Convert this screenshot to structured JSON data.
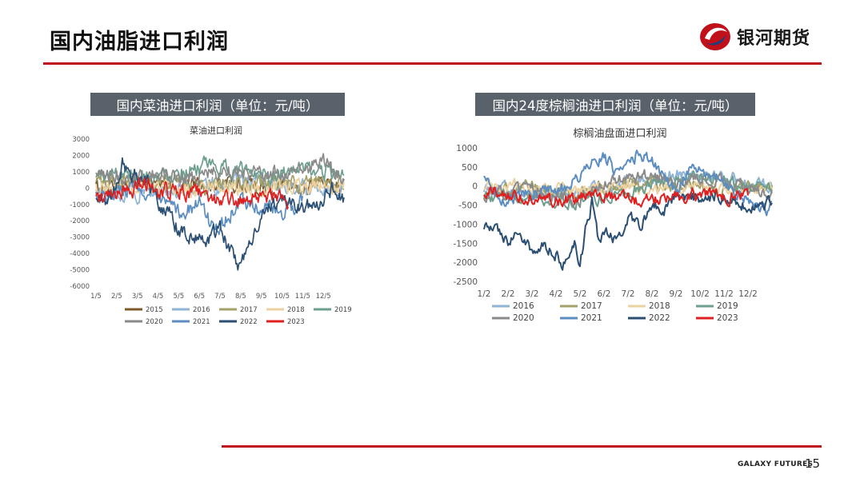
{
  "page": {
    "title": "国内油脂进口利润",
    "logo_text": "银河期货",
    "footer_brand": "GALAXY FUTURES",
    "page_number": "15",
    "accent_color": "#c0111b",
    "label_bar_color": "#59616b"
  },
  "chart_data": [
    {
      "type": "line",
      "label_bar": "国内菜油进口利润（单位：元/吨）",
      "title": "菜油进口利润",
      "x_tick_labels": [
        "1/5",
        "2/5",
        "3/5",
        "4/5",
        "5/5",
        "6/5",
        "7/5",
        "8/5",
        "9/5",
        "10/5",
        "11/5",
        "12/5"
      ],
      "x_range": [
        0,
        12
      ],
      "y_ticks": [
        3000,
        2000,
        1000,
        0,
        -1000,
        -2000,
        -3000,
        -4000,
        -5000,
        -6000
      ],
      "ylim": [
        -6000,
        3000
      ],
      "grid": false,
      "legend_position": "bottom",
      "series": [
        {
          "name": "2015",
          "color": "#7d5a2a",
          "anchors": [
            [
              0,
              150
            ],
            [
              1.5,
              300
            ],
            [
              3,
              200
            ],
            [
              5,
              250
            ],
            [
              7,
              150
            ],
            [
              9,
              100
            ],
            [
              11,
              150
            ],
            [
              12,
              100
            ]
          ]
        },
        {
          "name": "2016",
          "color": "#8fb4d6",
          "anchors": [
            [
              0,
              -200
            ],
            [
              2,
              -300
            ],
            [
              4,
              -100
            ],
            [
              6,
              200
            ],
            [
              8,
              300
            ],
            [
              10,
              0
            ],
            [
              12,
              200
            ]
          ]
        },
        {
          "name": "2017",
          "color": "#a3a06a",
          "anchors": [
            [
              0,
              300
            ],
            [
              2,
              400
            ],
            [
              4,
              200
            ],
            [
              6,
              100
            ],
            [
              8,
              300
            ],
            [
              10,
              200
            ],
            [
              12,
              300
            ]
          ]
        },
        {
          "name": "2018",
          "color": "#ecd2a0",
          "anchors": [
            [
              0,
              100
            ],
            [
              2,
              0
            ],
            [
              4,
              -100
            ],
            [
              6,
              200
            ],
            [
              8,
              50
            ],
            [
              10,
              100
            ],
            [
              12,
              0
            ]
          ]
        },
        {
          "name": "2019",
          "color": "#6e9f8e",
          "anchors": [
            [
              0,
              800
            ],
            [
              1.5,
              1000
            ],
            [
              3,
              700
            ],
            [
              4,
              1100
            ],
            [
              5,
              1300
            ],
            [
              6,
              1200
            ],
            [
              7,
              1100
            ],
            [
              8,
              1000
            ],
            [
              9,
              900
            ],
            [
              10,
              1100
            ],
            [
              11,
              1000
            ],
            [
              11.8,
              900
            ],
            [
              12,
              500
            ]
          ]
        },
        {
          "name": "2020",
          "color": "#8a8a8a",
          "anchors": [
            [
              0,
              500
            ],
            [
              1,
              700
            ],
            [
              2,
              800
            ],
            [
              3,
              900
            ],
            [
              4,
              600
            ],
            [
              5,
              800
            ],
            [
              6,
              1000
            ],
            [
              7,
              1200
            ],
            [
              8,
              1000
            ],
            [
              9,
              800
            ],
            [
              10,
              1100
            ],
            [
              11,
              1700
            ],
            [
              11.5,
              1000
            ],
            [
              12,
              600
            ]
          ]
        },
        {
          "name": "2021",
          "color": "#5b8dc0",
          "anchors": [
            [
              0,
              -400
            ],
            [
              1,
              -200
            ],
            [
              2,
              200
            ],
            [
              3,
              -800
            ],
            [
              4,
              -1500
            ],
            [
              5,
              -1000
            ],
            [
              5.5,
              -2000
            ],
            [
              6,
              -2500
            ],
            [
              6.5,
              -1500
            ],
            [
              7,
              -1000
            ],
            [
              8,
              -1200
            ],
            [
              9,
              -1500
            ],
            [
              10,
              -800
            ]
          ]
        },
        {
          "name": "2022",
          "color": "#2a4f73",
          "anchors": [
            [
              0,
              -800
            ],
            [
              0.8,
              -500
            ],
            [
              1,
              300
            ],
            [
              1.3,
              1600
            ],
            [
              1.6,
              1000
            ],
            [
              2,
              800
            ],
            [
              2.5,
              500
            ],
            [
              3,
              -800
            ],
            [
              3.5,
              -1500
            ],
            [
              4,
              -2500
            ],
            [
              4.5,
              -2800
            ],
            [
              5,
              -3200
            ],
            [
              5.5,
              -3000
            ],
            [
              6,
              -2500
            ],
            [
              6.5,
              -3800
            ],
            [
              6.9,
              -4800
            ],
            [
              7.1,
              -4300
            ],
            [
              7.5,
              -3500
            ],
            [
              7.9,
              -2200
            ],
            [
              8.2,
              -1000
            ],
            [
              8.5,
              -1200
            ],
            [
              9,
              -900
            ],
            [
              9.5,
              -1000
            ],
            [
              10,
              -1200
            ],
            [
              10.5,
              -800
            ],
            [
              11,
              -600
            ],
            [
              11.5,
              0
            ],
            [
              12,
              -700
            ]
          ]
        },
        {
          "name": "2023",
          "color": "#e02020",
          "anchors": [
            [
              0,
              -700
            ],
            [
              1,
              -500
            ],
            [
              2,
              0
            ],
            [
              2.5,
              200
            ],
            [
              3,
              -300
            ],
            [
              4,
              -100
            ],
            [
              5,
              -400
            ],
            [
              6,
              -700
            ],
            [
              6.5,
              -800
            ],
            [
              7,
              -700
            ],
            [
              8,
              -600
            ],
            [
              9,
              -700
            ],
            [
              9.3,
              -1200
            ]
          ]
        }
      ]
    },
    {
      "type": "line",
      "label_bar": "国内24度棕榈油进口利润（单位：元/吨）",
      "title": "棕榈油盘面进口利润",
      "x_tick_labels": [
        "1/2",
        "2/2",
        "3/2",
        "4/2",
        "5/2",
        "6/2",
        "7/2",
        "8/2",
        "9/2",
        "10/2",
        "11/2",
        "12/2"
      ],
      "x_range": [
        0,
        12
      ],
      "y_ticks": [
        1000,
        500,
        0,
        -500,
        -1000,
        -1500,
        -2000,
        -2500
      ],
      "ylim": [
        -2500,
        1000
      ],
      "grid": false,
      "legend_position": "bottom",
      "series": [
        {
          "name": "2016",
          "color": "#8fb4d6",
          "anchors": [
            [
              0,
              0
            ],
            [
              1.5,
              -100
            ],
            [
              3,
              -200
            ],
            [
              4.5,
              -100
            ],
            [
              6,
              100
            ],
            [
              7.5,
              300
            ],
            [
              9,
              400
            ],
            [
              10.5,
              200
            ],
            [
              11.5,
              0
            ],
            [
              12,
              100
            ]
          ]
        },
        {
          "name": "2017",
          "color": "#a3a06a",
          "anchors": [
            [
              0,
              -100
            ],
            [
              2,
              0
            ],
            [
              4,
              -200
            ],
            [
              6,
              100
            ],
            [
              8,
              50
            ],
            [
              10,
              -100
            ],
            [
              12,
              0
            ]
          ]
        },
        {
          "name": "2018",
          "color": "#ecd2a0",
          "anchors": [
            [
              0,
              50
            ],
            [
              2,
              -50
            ],
            [
              4,
              -100
            ],
            [
              6,
              0
            ],
            [
              8,
              -50
            ],
            [
              10,
              -100
            ],
            [
              12,
              -50
            ]
          ]
        },
        {
          "name": "2019",
          "color": "#6e9f8e",
          "anchors": [
            [
              0,
              -200
            ],
            [
              2,
              -300
            ],
            [
              4,
              -400
            ],
            [
              6,
              -100
            ],
            [
              8,
              200
            ],
            [
              9,
              300
            ],
            [
              10,
              200
            ],
            [
              11,
              0
            ],
            [
              12,
              -100
            ]
          ]
        },
        {
          "name": "2020",
          "color": "#8a8a8a",
          "anchors": [
            [
              0,
              -200
            ],
            [
              2,
              -100
            ],
            [
              4,
              -300
            ],
            [
              5,
              100
            ],
            [
              6,
              200
            ],
            [
              7,
              300
            ],
            [
              8,
              100
            ],
            [
              9,
              200
            ],
            [
              10,
              100
            ],
            [
              11,
              0
            ],
            [
              12,
              -200
            ]
          ]
        },
        {
          "name": "2021",
          "color": "#5b8dc0",
          "anchors": [
            [
              0,
              400
            ],
            [
              0.3,
              -200
            ],
            [
              1,
              -300
            ],
            [
              2,
              -200
            ],
            [
              3,
              -100
            ],
            [
              4,
              200
            ],
            [
              4.5,
              600
            ],
            [
              5,
              800
            ],
            [
              5.5,
              400
            ],
            [
              6,
              700
            ],
            [
              6.5,
              900
            ],
            [
              7,
              700
            ],
            [
              7.5,
              300
            ],
            [
              8,
              -100
            ],
            [
              8.5,
              400
            ],
            [
              9,
              500
            ],
            [
              9.5,
              300
            ],
            [
              10,
              100
            ],
            [
              10.5,
              -200
            ],
            [
              11,
              -400
            ],
            [
              11.5,
              -700
            ],
            [
              12,
              -500
            ]
          ]
        },
        {
          "name": "2022",
          "color": "#2a4f73",
          "anchors": [
            [
              0,
              -1000
            ],
            [
              0.5,
              -1200
            ],
            [
              1,
              -1400
            ],
            [
              1.5,
              -1200
            ],
            [
              2,
              -1700
            ],
            [
              2.5,
              -1500
            ],
            [
              3,
              -1800
            ],
            [
              3.5,
              -2100
            ],
            [
              3.8,
              -1500
            ],
            [
              4,
              -2200
            ],
            [
              4.2,
              -1200
            ],
            [
              4.5,
              -400
            ],
            [
              4.8,
              -1600
            ],
            [
              5,
              -1200
            ],
            [
              5.5,
              -1400
            ],
            [
              6,
              -800
            ],
            [
              6.5,
              -1100
            ],
            [
              7,
              -400
            ],
            [
              7.5,
              -600
            ],
            [
              8,
              -200
            ],
            [
              9,
              -300
            ],
            [
              10,
              -200
            ],
            [
              11,
              -500
            ],
            [
              11.5,
              -600
            ],
            [
              12,
              -300
            ]
          ]
        },
        {
          "name": "2023",
          "color": "#e02020",
          "anchors": [
            [
              0,
              -100
            ],
            [
              1,
              -200
            ],
            [
              2,
              -250
            ],
            [
              2.5,
              -400
            ],
            [
              3,
              -350
            ],
            [
              4,
              -300
            ],
            [
              5,
              -250
            ],
            [
              6,
              -350
            ],
            [
              7,
              -300
            ],
            [
              8,
              -250
            ],
            [
              9,
              -200
            ],
            [
              10,
              -250
            ],
            [
              11,
              -200
            ]
          ]
        }
      ]
    }
  ]
}
